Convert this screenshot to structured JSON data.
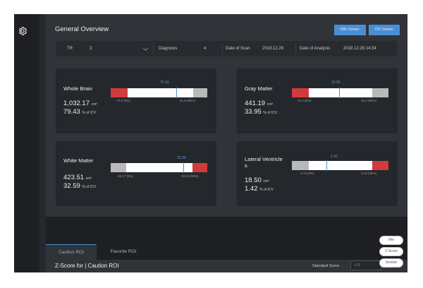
{
  "header": {
    "title": "General Overview",
    "mr_viewer_label": "MR Viewer",
    "od_viewer_label": "OD Viewer"
  },
  "filters": {
    "field1_label": "TR",
    "field1_value": "3",
    "diagnosis_label": "Diagnosis",
    "diagnosis_value": "4",
    "date_scan_label": "Date of Scan",
    "date_scan_value": "2018.12.28",
    "date_analysis_label": "Date of Analysis",
    "date_analysis_value": "2018.12.28 14:34"
  },
  "cards": {
    "whole_brain": {
      "name": "Whole Brain",
      "volume": "1,032.17",
      "volume_unit": "cm³",
      "percent": "79.43",
      "percent_unit": "% of ICV",
      "marker": "79.43",
      "range_low": "74.2 (5%)",
      "range_high": "81.8 (95%)",
      "marker_fraction": 0.68
    },
    "gray_matter": {
      "name": "Gray Matter",
      "volume": "441.19",
      "volume_unit": "cm³",
      "percent": "33.95",
      "percent_unit": "% of ICV",
      "marker": "33.95",
      "range_low": "31.6 (5%)",
      "range_high": "36.4 (95%)",
      "marker_fraction": 0.49
    },
    "white_matter": {
      "name": "White Matter",
      "volume": "423.51",
      "volume_unit": "cm³",
      "percent": "32.59",
      "percent_unit": "% of ICV",
      "marker": "32.59",
      "range_low": "28.17 (5%)",
      "range_high": "33.23 (95%)",
      "marker_fraction": 0.75
    },
    "lateral_ventricle": {
      "name": "Lateral Ventricle",
      "name_suffix": "s",
      "volume": "18.50",
      "volume_unit": "cm³",
      "percent": "1.42",
      "percent_unit": "% of ICV",
      "marker": "1.42",
      "range_low": "0.76 (5%)",
      "range_high": "3.43 (95%)",
      "marker_fraction": 0.36
    }
  },
  "tabs": {
    "caution": "Caution ROI",
    "favorite": "Favorite ROI"
  },
  "zscore": {
    "title": "Z-Score for",
    "subtitle": "Caution ROI",
    "std_label": "Standard Score",
    "std_placeholder": "-1.5"
  },
  "side_buttons": {
    "b1": "File",
    "b2": "Z-Score",
    "b3": "Section"
  }
}
